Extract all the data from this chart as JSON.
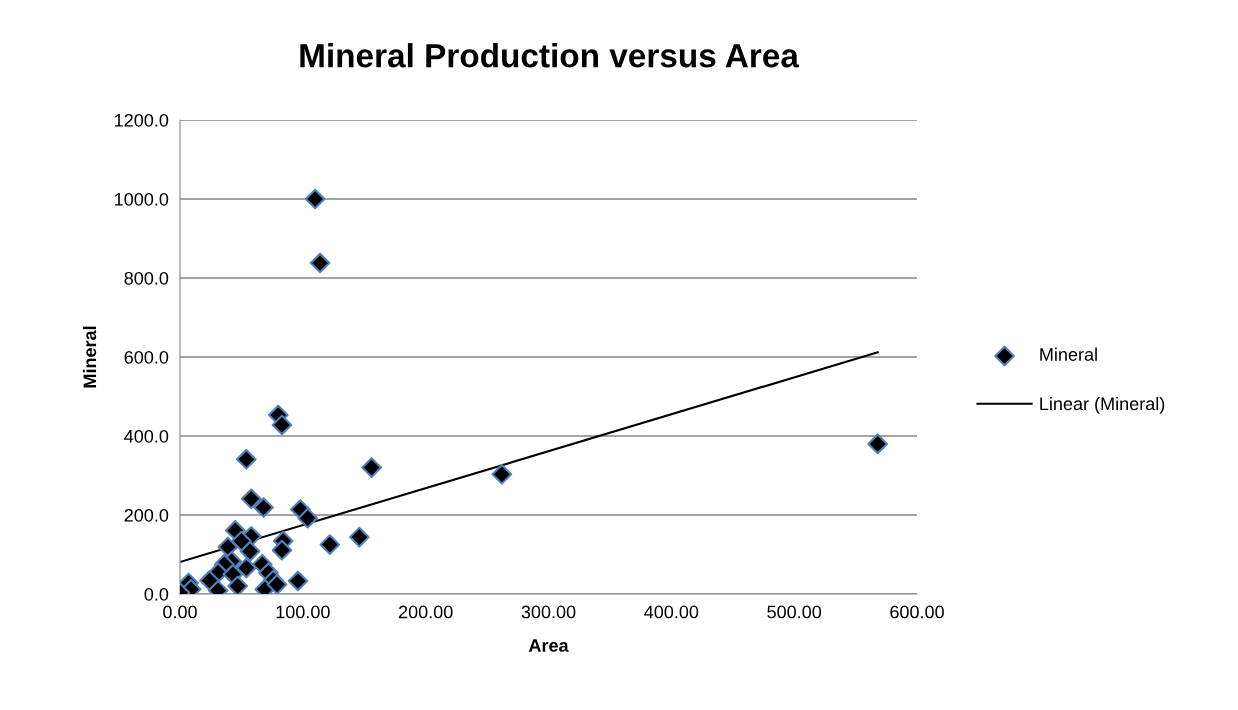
{
  "chart_data": {
    "type": "scatter",
    "title": "Mineral Production versus Area",
    "xlabel": "Area",
    "ylabel": "Mineral",
    "xlim": [
      0,
      600
    ],
    "xticks": [
      {
        "value": 0,
        "label": "0.00"
      },
      {
        "value": 100,
        "label": "100.00"
      },
      {
        "value": 200,
        "label": "200.00"
      },
      {
        "value": 300,
        "label": "300.00"
      },
      {
        "value": 400,
        "label": "400.00"
      },
      {
        "value": 500,
        "label": "500.00"
      },
      {
        "value": 600,
        "label": "600.00"
      }
    ],
    "ylim": [
      0,
      1200
    ],
    "yticks": [
      {
        "value": 0,
        "label": "0.0"
      },
      {
        "value": 200,
        "label": "200.0"
      },
      {
        "value": 400,
        "label": "400.0"
      },
      {
        "value": 600,
        "label": "600.0"
      },
      {
        "value": 800,
        "label": "800.0"
      },
      {
        "value": 1000,
        "label": "1000.0"
      },
      {
        "value": 1200,
        "label": "1200.0"
      }
    ],
    "grid": "y",
    "legend": "right",
    "marker": "diamond",
    "series": [
      {
        "name": "Mineral",
        "color": "#000000",
        "x": [
          80,
          83,
          54,
          156,
          58,
          68,
          98,
          104,
          45,
          58,
          84,
          39,
          83,
          122,
          146,
          57,
          50,
          42,
          36,
          54,
          67,
          72,
          31,
          43,
          24,
          76,
          96,
          47,
          31,
          69,
          79,
          7,
          9,
          0,
          110,
          114,
          262,
          568
        ],
        "values": [
          453,
          428,
          341,
          320,
          241,
          219,
          214,
          192,
          161,
          146,
          134,
          119,
          111,
          125,
          144,
          108,
          134,
          83,
          75,
          66,
          75,
          54,
          54,
          50,
          34,
          35,
          33,
          20,
          9,
          12,
          24,
          28,
          12,
          3,
          1000,
          838,
          303,
          380
        ]
      },
      {
        "name": "Linear (Mineral)",
        "type": "line",
        "color": "#000000",
        "marker": "none",
        "x": [
          0,
          568
        ],
        "values": [
          81,
          612
        ]
      }
    ]
  }
}
